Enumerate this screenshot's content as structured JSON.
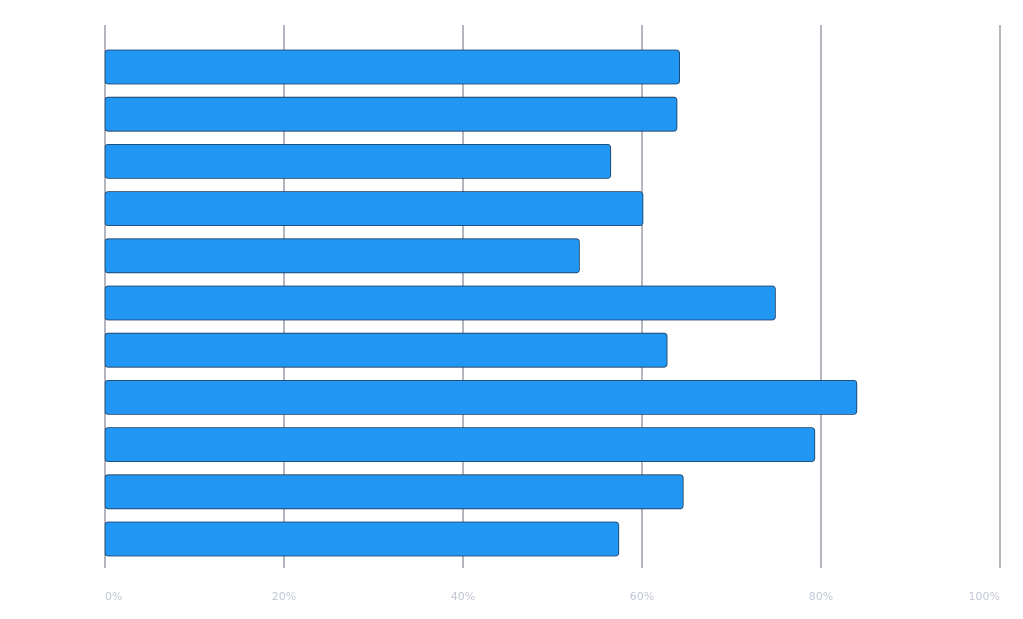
{
  "chart_data": {
    "type": "bar",
    "orientation": "horizontal",
    "categories": [
      "",
      "",
      "",
      "",
      "",
      "",
      "",
      "",
      "",
      "",
      ""
    ],
    "values": [
      64.2,
      63.9,
      56.5,
      60.1,
      53.0,
      74.9,
      62.8,
      84.0,
      79.3,
      64.6,
      57.4
    ],
    "title": "",
    "xlabel": "",
    "ylabel": "",
    "xlim": [
      0,
      100
    ],
    "ticks": [
      "0%",
      "20%",
      "40%",
      "60%",
      "80%",
      "100%"
    ],
    "tick_values": [
      0,
      20,
      40,
      60,
      80,
      100
    ],
    "grid": true,
    "legend": "none",
    "bar_color": "#2196f3",
    "bar_stroke": "#1a3a5c",
    "grid_color": "#6b6b80",
    "tick_label_color": "#c2c6d6"
  }
}
